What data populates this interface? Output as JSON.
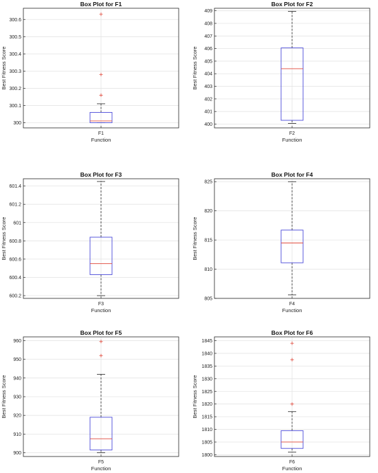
{
  "colors": {
    "box": "#4a4ad9",
    "median": "#e0473a",
    "whisker": "#202020",
    "outlier": "#e0473a",
    "grid": "#e4e4e4",
    "axes": "#262626"
  },
  "chart_data": [
    {
      "type": "box",
      "title": "Box Plot for F1",
      "xlabel": "Function",
      "ylabel": "Best Fitness Score",
      "category": "F1",
      "ylim": [
        299.97,
        300.665
      ],
      "yticks": [
        300,
        300.1,
        300.2,
        300.3,
        300.4,
        300.5,
        300.6
      ],
      "yticklabels": [
        "300",
        "300.1",
        "300.2",
        "300.3",
        "300.4",
        "300.5",
        "300.6"
      ],
      "grid": true,
      "box": {
        "whisker_low": 300.0,
        "q1": 300.0,
        "median": 300.01,
        "q3": 300.06,
        "whisker_high": 300.11,
        "outliers": [
          300.16,
          300.28,
          300.63
        ]
      }
    },
    {
      "type": "box",
      "title": "Box Plot for F2",
      "xlabel": "Function",
      "ylabel": "Best Fitness Score",
      "category": "F2",
      "ylim": [
        399.7,
        409.2
      ],
      "yticks": [
        400,
        401,
        402,
        403,
        404,
        405,
        406,
        407,
        408,
        409
      ],
      "yticklabels": [
        "400",
        "401",
        "402",
        "403",
        "404",
        "405",
        "406",
        "407",
        "408",
        "409"
      ],
      "grid": true,
      "box": {
        "whisker_low": 400.05,
        "q1": 400.3,
        "median": 404.4,
        "q3": 406.05,
        "whisker_high": 408.95,
        "outliers": []
      }
    },
    {
      "type": "box",
      "title": "Box Plot for F3",
      "xlabel": "Function",
      "ylabel": "Best Fitness Score",
      "category": "F3",
      "ylim": [
        600.17,
        601.48
      ],
      "yticks": [
        600.2,
        600.4,
        600.6,
        600.8,
        601,
        601.2,
        601.4
      ],
      "yticklabels": [
        "600.2",
        "600.4",
        "600.6",
        "600.8",
        "601",
        "601.2",
        "601.4"
      ],
      "grid": true,
      "box": {
        "whisker_low": 600.2,
        "q1": 600.43,
        "median": 600.55,
        "q3": 600.84,
        "whisker_high": 601.45,
        "outliers": []
      }
    },
    {
      "type": "box",
      "title": "Box Plot for F4",
      "xlabel": "Function",
      "ylabel": "Best Fitness Score",
      "category": "F4",
      "ylim": [
        805.0,
        825.5
      ],
      "yticks": [
        805,
        810,
        815,
        820,
        825
      ],
      "yticklabels": [
        "805",
        "810",
        "815",
        "820",
        "825"
      ],
      "grid": true,
      "box": {
        "whisker_low": 805.6,
        "q1": 811.1,
        "median": 814.5,
        "q3": 816.7,
        "whisker_high": 825.0,
        "outliers": []
      }
    },
    {
      "type": "box",
      "title": "Box Plot for F5",
      "xlabel": "Function",
      "ylabel": "Best Fitness Score",
      "category": "F5",
      "ylim": [
        898.0,
        962.0
      ],
      "yticks": [
        900,
        910,
        920,
        930,
        940,
        950,
        960
      ],
      "yticklabels": [
        "900",
        "910",
        "920",
        "930",
        "940",
        "950",
        "960"
      ],
      "grid": true,
      "box": {
        "whisker_low": 900.0,
        "q1": 901.5,
        "median": 907.5,
        "q3": 919.0,
        "whisker_high": 942.0,
        "outliers": [
          952.0,
          959.5
        ]
      }
    },
    {
      "type": "box",
      "title": "Box Plot for F6",
      "xlabel": "Function",
      "ylabel": "Best Fitness Score",
      "category": "F6",
      "ylim": [
        1799.3,
        1846.5
      ],
      "yticks": [
        1800,
        1805,
        1810,
        1815,
        1820,
        1825,
        1830,
        1835,
        1840,
        1845
      ],
      "yticklabels": [
        "1800",
        "1805",
        "1810",
        "1815",
        "1820",
        "1825",
        "1830",
        "1835",
        "1840",
        "1845"
      ],
      "grid": true,
      "box": {
        "whisker_low": 1801.0,
        "q1": 1802.5,
        "median": 1805.0,
        "q3": 1809.5,
        "whisker_high": 1817.0,
        "outliers": [
          1820.0,
          1837.5,
          1844.0
        ]
      }
    }
  ]
}
